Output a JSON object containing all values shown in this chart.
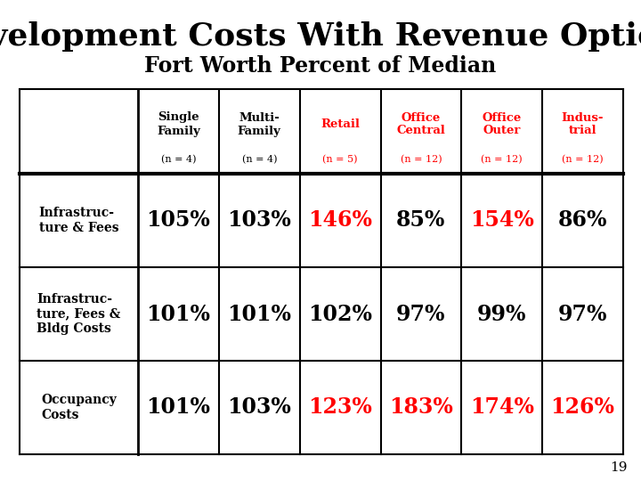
{
  "title": "Development Costs With Revenue Options",
  "subtitle": "Fort Worth Percent of Median",
  "page_number": "19",
  "col_headers": [
    [
      "Single\nFamily",
      "(n = 4)",
      "black"
    ],
    [
      "Multi-\nFamily",
      "(n = 4)",
      "black"
    ],
    [
      "Retail",
      "(n = 5)",
      "red"
    ],
    [
      "Office\nCentral",
      "(n = 12)",
      "red"
    ],
    [
      "Office\nOuter",
      "(n = 12)",
      "red"
    ],
    [
      "Indus-\ntrial",
      "(n = 12)",
      "red"
    ]
  ],
  "row_headers": [
    "Infrastruc-\nture & Fees",
    "Infrastruc-\nture, Fees &\nBldg Costs",
    "Occupancy\nCosts"
  ],
  "data": [
    [
      "105%",
      "103%",
      "146%",
      "85%",
      "154%",
      "86%"
    ],
    [
      "101%",
      "101%",
      "102%",
      "97%",
      "99%",
      "97%"
    ],
    [
      "101%",
      "103%",
      "123%",
      "183%",
      "174%",
      "126%"
    ]
  ],
  "data_colors": [
    [
      "black",
      "black",
      "red",
      "black",
      "red",
      "black"
    ],
    [
      "black",
      "black",
      "black",
      "black",
      "black",
      "black"
    ],
    [
      "black",
      "black",
      "red",
      "red",
      "red",
      "red"
    ]
  ],
  "background_color": "#ffffff",
  "title_fontsize": 26,
  "subtitle_fontsize": 17
}
